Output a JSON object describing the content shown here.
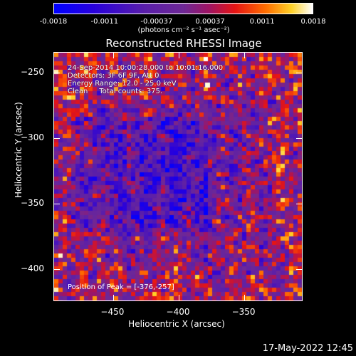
{
  "colorbar": {
    "ticks": [
      {
        "label": "-0.0018",
        "frac": 0.0
      },
      {
        "label": "-0.0011",
        "frac": 0.1968
      },
      {
        "label": "-0.00037",
        "frac": 0.397
      },
      {
        "label": "0.00037",
        "frac": 0.603
      },
      {
        "label": "0.0011",
        "frac": 0.8032
      },
      {
        "label": "0.0018",
        "frac": 1.0
      }
    ],
    "units": "(photons cm⁻² s⁻¹ asec⁻²)",
    "range": [
      -0.0018,
      0.0018
    ]
  },
  "plot": {
    "title": "Reconstructed RHESSI Image",
    "x_axis": {
      "title": "Heliocentric X (arcsec)",
      "range": [
        -495,
        -305
      ],
      "ticks": [
        -450,
        -400,
        -350
      ],
      "tick_labels": [
        "−450",
        "−400",
        "−350"
      ]
    },
    "y_axis": {
      "title": "Heliocentric Y (arcsec)",
      "range": [
        -425,
        -235
      ],
      "ticks": [
        -250,
        -300,
        -350,
        -400
      ],
      "tick_labels": [
        "−250",
        "−300",
        "−350",
        "−400"
      ]
    }
  },
  "info": {
    "line1": "24-Sep-2014 10:00:28.000 to 10:01:16.000",
    "line2": "Detectors: 3F 6F 9F, Att 0",
    "line3": "Energy Range: 12.0 - 25.0 keV",
    "line4": "Clean     Total counts: 375.",
    "peak": "Position of Peak = [-376,-257]"
  },
  "footer": {
    "timestamp": "17-May-2022 12:45"
  }
}
